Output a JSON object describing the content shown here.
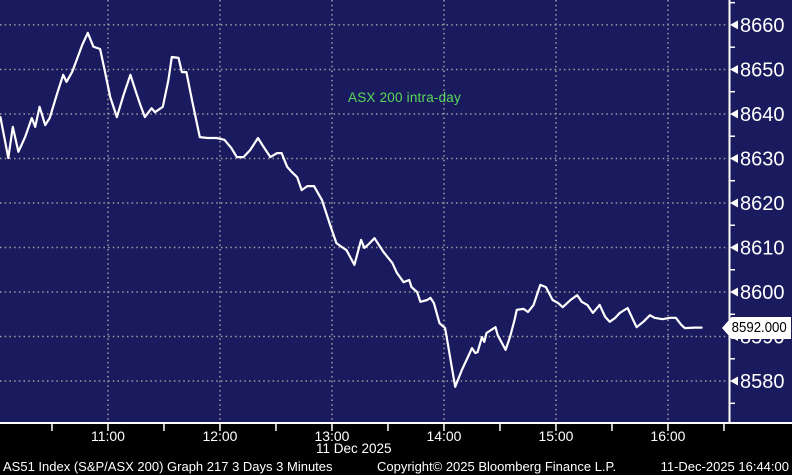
{
  "colors": {
    "background": "#000000",
    "plot_background": "#1a1b5e",
    "line": "#ffffff",
    "grid": "#9d9d9d",
    "axis": "#ffffff",
    "tick_label": "#ffffff",
    "annotation_green": "#58d858",
    "price_tag_bg": "#ffffff",
    "price_tag_text": "#000000"
  },
  "chart_data": {
    "type": "line",
    "title": "ASX 200 intra-day",
    "x_axis_date": "11 Dec 2025",
    "xlim": [
      10.036,
      16.545
    ],
    "ylim": [
      8570.8,
      8665.6
    ],
    "grid": true,
    "legend_position": "none",
    "y_ticks": [
      8580,
      8590,
      8600,
      8610,
      8620,
      8630,
      8640,
      8650,
      8660
    ],
    "y_minor_step": 5,
    "x_ticks": [
      {
        "hour": 11,
        "label": "11:00"
      },
      {
        "hour": 12,
        "label": "12:00"
      },
      {
        "hour": 13,
        "label": "13:00"
      },
      {
        "hour": 14,
        "label": "14:00"
      },
      {
        "hour": 15,
        "label": "15:00"
      },
      {
        "hour": 16,
        "label": "16:00"
      }
    ],
    "x_minor_step": 0.5,
    "last_price": 8592.0,
    "last_price_label": "8592.000",
    "series": [
      {
        "name": "ASX 200 intra-day",
        "color": "#ffffff",
        "points": [
          [
            10.04,
            8639.3
          ],
          [
            10.11,
            8630.1
          ],
          [
            10.15,
            8637.1
          ],
          [
            10.2,
            8631.5
          ],
          [
            10.26,
            8634.8
          ],
          [
            10.32,
            8639.1
          ],
          [
            10.35,
            8637.1
          ],
          [
            10.39,
            8641.6
          ],
          [
            10.44,
            8637.5
          ],
          [
            10.48,
            8639.1
          ],
          [
            10.55,
            8644.9
          ],
          [
            10.6,
            8648.8
          ],
          [
            10.63,
            8647.2
          ],
          [
            10.68,
            8649.4
          ],
          [
            10.72,
            8652.1
          ],
          [
            10.77,
            8655.5
          ],
          [
            10.82,
            8658.2
          ],
          [
            10.87,
            8655.1
          ],
          [
            10.93,
            8654.6
          ],
          [
            10.97,
            8649.9
          ],
          [
            11.02,
            8643.8
          ],
          [
            11.08,
            8639.3
          ],
          [
            11.14,
            8644.3
          ],
          [
            11.2,
            8648.8
          ],
          [
            11.25,
            8644.9
          ],
          [
            11.29,
            8642.0
          ],
          [
            11.33,
            8639.3
          ],
          [
            11.39,
            8641.3
          ],
          [
            11.42,
            8640.4
          ],
          [
            11.49,
            8641.6
          ],
          [
            11.54,
            8647.6
          ],
          [
            11.57,
            8652.8
          ],
          [
            11.63,
            8652.6
          ],
          [
            11.66,
            8649.4
          ],
          [
            11.7,
            8649.4
          ],
          [
            11.75,
            8643.1
          ],
          [
            11.82,
            8634.8
          ],
          [
            11.89,
            8634.6
          ],
          [
            11.97,
            8634.6
          ],
          [
            12.04,
            8634.2
          ],
          [
            12.1,
            8632.4
          ],
          [
            12.15,
            8630.3
          ],
          [
            12.21,
            8630.3
          ],
          [
            12.27,
            8631.9
          ],
          [
            12.34,
            8634.6
          ],
          [
            12.39,
            8632.6
          ],
          [
            12.45,
            8630.3
          ],
          [
            12.51,
            8631.2
          ],
          [
            12.55,
            8631.2
          ],
          [
            12.6,
            8628.1
          ],
          [
            12.64,
            8627.0
          ],
          [
            12.69,
            8625.8
          ],
          [
            12.73,
            8622.9
          ],
          [
            12.78,
            8623.8
          ],
          [
            12.84,
            8623.8
          ],
          [
            12.91,
            8620.7
          ],
          [
            12.99,
            8614.6
          ],
          [
            13.04,
            8611.0
          ],
          [
            13.09,
            8610.1
          ],
          [
            13.13,
            8609.4
          ],
          [
            13.2,
            8606.1
          ],
          [
            13.26,
            8611.7
          ],
          [
            13.29,
            8609.9
          ],
          [
            13.33,
            8610.8
          ],
          [
            13.38,
            8612.1
          ],
          [
            13.46,
            8609.0
          ],
          [
            13.54,
            8606.5
          ],
          [
            13.58,
            8604.3
          ],
          [
            13.64,
            8602.2
          ],
          [
            13.69,
            8602.7
          ],
          [
            13.71,
            8601.1
          ],
          [
            13.76,
            8600.0
          ],
          [
            13.79,
            8597.8
          ],
          [
            13.85,
            8598.2
          ],
          [
            13.88,
            8598.7
          ],
          [
            13.91,
            8597.5
          ],
          [
            13.96,
            8593.0
          ],
          [
            14.01,
            8591.9
          ],
          [
            14.04,
            8587.6
          ],
          [
            14.07,
            8583.1
          ],
          [
            14.1,
            8578.7
          ],
          [
            14.16,
            8582.5
          ],
          [
            14.21,
            8585.2
          ],
          [
            14.25,
            8587.4
          ],
          [
            14.28,
            8586.3
          ],
          [
            14.3,
            8586.5
          ],
          [
            14.34,
            8589.9
          ],
          [
            14.36,
            8588.8
          ],
          [
            14.38,
            8590.8
          ],
          [
            14.46,
            8592.1
          ],
          [
            14.48,
            8590.3
          ],
          [
            14.55,
            8587.0
          ],
          [
            14.59,
            8589.9
          ],
          [
            14.63,
            8593.7
          ],
          [
            14.65,
            8596.0
          ],
          [
            14.71,
            8596.2
          ],
          [
            14.75,
            8595.5
          ],
          [
            14.8,
            8597.1
          ],
          [
            14.86,
            8601.6
          ],
          [
            14.91,
            8601.1
          ],
          [
            14.97,
            8598.2
          ],
          [
            15.02,
            8597.5
          ],
          [
            15.06,
            8596.6
          ],
          [
            15.13,
            8598.2
          ],
          [
            15.19,
            8599.3
          ],
          [
            15.23,
            8597.8
          ],
          [
            15.28,
            8597.1
          ],
          [
            15.33,
            8595.3
          ],
          [
            15.39,
            8597.1
          ],
          [
            15.44,
            8594.4
          ],
          [
            15.48,
            8593.3
          ],
          [
            15.53,
            8594.2
          ],
          [
            15.57,
            8595.3
          ],
          [
            15.64,
            8596.4
          ],
          [
            15.69,
            8593.7
          ],
          [
            15.72,
            8592.1
          ],
          [
            15.78,
            8593.3
          ],
          [
            15.84,
            8594.8
          ],
          [
            15.88,
            8594.2
          ],
          [
            15.95,
            8593.9
          ],
          [
            16.02,
            8594.2
          ],
          [
            16.07,
            8594.2
          ],
          [
            16.12,
            8592.6
          ],
          [
            16.15,
            8591.9
          ],
          [
            16.24,
            8592.0
          ],
          [
            16.3,
            8592.0
          ]
        ]
      }
    ]
  },
  "footer": {
    "left": "AS51 Index (S&P/ASX 200) Graph 217 3 Days 3 Minutes",
    "center": "Copyright© 2025 Bloomberg Finance L.P.",
    "right": "11-Dec-2025 16:44:00"
  }
}
